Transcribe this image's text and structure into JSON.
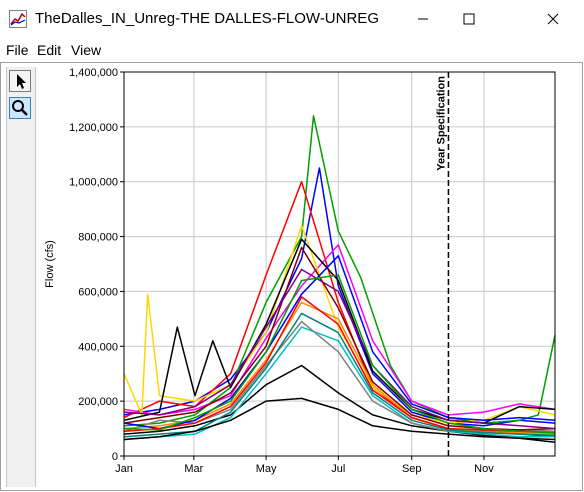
{
  "window": {
    "title": "TheDalles_IN_Unreg-THE DALLES-FLOW-UNREG",
    "icon": "chart-icon",
    "controls": [
      "minimize-icon",
      "maximize-icon",
      "close-icon"
    ]
  },
  "menu": [
    "File",
    "Edit",
    "View"
  ],
  "tools": [
    {
      "icon": "arrow-pointer-icon",
      "active": false
    },
    {
      "icon": "magnifier-icon",
      "active": true
    }
  ],
  "chart_data": {
    "type": "line",
    "title": "",
    "xlabel": "",
    "ylabel": "Flow (cfs)",
    "ylim": [
      0,
      1400000
    ],
    "x_domain_days": [
      0,
      364
    ],
    "x_ticks": [
      {
        "label": "Jan",
        "day": 0
      },
      {
        "label": "Mar",
        "day": 59
      },
      {
        "label": "May",
        "day": 120
      },
      {
        "label": "Jul",
        "day": 181
      },
      {
        "label": "Sep",
        "day": 243
      },
      {
        "label": "Nov",
        "day": 304
      }
    ],
    "y_ticks": [
      0,
      200000,
      400000,
      600000,
      800000,
      1000000,
      1200000,
      1400000
    ],
    "y_tick_labels": [
      "0",
      "200,000",
      "400,000",
      "600,000",
      "800,000",
      "1,000,000",
      "1,200,000",
      "1,400,000"
    ],
    "grid": true,
    "legend": "none",
    "marker": {
      "label": "Year Specification",
      "day": 274,
      "style": "dashed"
    },
    "series_colors": [
      "#000000",
      "#ff0000",
      "#0000ff",
      "#00a000",
      "#ff00ff",
      "#ffd700",
      "#00c0c0",
      "#ff8c00",
      "#808080",
      "#800000",
      "#008080",
      "#800080"
    ],
    "series": [
      {
        "color": "#000000",
        "values": [
          [
            0,
            80000
          ],
          [
            30,
            90000
          ],
          [
            60,
            110000
          ],
          [
            90,
            150000
          ],
          [
            120,
            260000
          ],
          [
            150,
            330000
          ],
          [
            181,
            230000
          ],
          [
            210,
            150000
          ],
          [
            243,
            110000
          ],
          [
            274,
            90000
          ],
          [
            304,
            75000
          ],
          [
            334,
            65000
          ],
          [
            364,
            60000
          ]
        ]
      },
      {
        "color": "#0000ff",
        "values": [
          [
            0,
            150000
          ],
          [
            30,
            170000
          ],
          [
            60,
            200000
          ],
          [
            90,
            280000
          ],
          [
            120,
            450000
          ],
          [
            150,
            720000
          ],
          [
            165,
            1050000
          ],
          [
            181,
            620000
          ],
          [
            210,
            300000
          ],
          [
            243,
            160000
          ],
          [
            274,
            120000
          ],
          [
            304,
            110000
          ],
          [
            334,
            130000
          ],
          [
            364,
            120000
          ]
        ]
      },
      {
        "color": "#00a000",
        "values": [
          [
            0,
            110000
          ],
          [
            30,
            120000
          ],
          [
            60,
            150000
          ],
          [
            90,
            250000
          ],
          [
            120,
            560000
          ],
          [
            150,
            800000
          ],
          [
            160,
            1240000
          ],
          [
            181,
            820000
          ],
          [
            200,
            650000
          ],
          [
            225,
            330000
          ],
          [
            243,
            200000
          ],
          [
            274,
            140000
          ],
          [
            304,
            120000
          ],
          [
            334,
            130000
          ],
          [
            350,
            150000
          ],
          [
            364,
            440000
          ]
        ]
      },
      {
        "color": "#ff0000",
        "values": [
          [
            0,
            140000
          ],
          [
            30,
            200000
          ],
          [
            60,
            180000
          ],
          [
            90,
            300000
          ],
          [
            120,
            660000
          ],
          [
            150,
            1000000
          ],
          [
            181,
            560000
          ],
          [
            210,
            250000
          ],
          [
            243,
            140000
          ],
          [
            274,
            100000
          ],
          [
            304,
            90000
          ],
          [
            334,
            80000
          ],
          [
            364,
            70000
          ]
        ]
      },
      {
        "color": "#ff00ff",
        "values": [
          [
            0,
            170000
          ],
          [
            30,
            150000
          ],
          [
            60,
            170000
          ],
          [
            90,
            220000
          ],
          [
            120,
            430000
          ],
          [
            150,
            620000
          ],
          [
            181,
            770000
          ],
          [
            210,
            420000
          ],
          [
            243,
            200000
          ],
          [
            274,
            150000
          ],
          [
            304,
            160000
          ],
          [
            334,
            190000
          ],
          [
            364,
            170000
          ]
        ]
      },
      {
        "color": "#ffd700",
        "values": [
          [
            0,
            300000
          ],
          [
            15,
            150000
          ],
          [
            20,
            590000
          ],
          [
            30,
            220000
          ],
          [
            60,
            200000
          ],
          [
            90,
            260000
          ],
          [
            120,
            450000
          ],
          [
            150,
            840000
          ],
          [
            181,
            470000
          ],
          [
            210,
            250000
          ],
          [
            243,
            150000
          ],
          [
            274,
            120000
          ],
          [
            304,
            130000
          ],
          [
            334,
            180000
          ],
          [
            364,
            150000
          ]
        ]
      },
      {
        "color": "#00c0c0",
        "values": [
          [
            0,
            60000
          ],
          [
            30,
            70000
          ],
          [
            60,
            80000
          ],
          [
            90,
            140000
          ],
          [
            120,
            300000
          ],
          [
            150,
            470000
          ],
          [
            181,
            420000
          ],
          [
            210,
            220000
          ],
          [
            243,
            120000
          ],
          [
            274,
            90000
          ],
          [
            304,
            80000
          ],
          [
            334,
            70000
          ],
          [
            364,
            70000
          ]
        ]
      },
      {
        "color": "#ff8c00",
        "values": [
          [
            0,
            100000
          ],
          [
            30,
            110000
          ],
          [
            60,
            130000
          ],
          [
            90,
            190000
          ],
          [
            120,
            350000
          ],
          [
            150,
            560000
          ],
          [
            181,
            500000
          ],
          [
            210,
            260000
          ],
          [
            243,
            140000
          ],
          [
            274,
            100000
          ],
          [
            304,
            90000
          ],
          [
            334,
            85000
          ],
          [
            364,
            80000
          ]
        ]
      },
      {
        "color": "#808080",
        "values": [
          [
            0,
            90000
          ],
          [
            30,
            130000
          ],
          [
            60,
            120000
          ],
          [
            90,
            170000
          ],
          [
            120,
            330000
          ],
          [
            150,
            490000
          ],
          [
            181,
            380000
          ],
          [
            210,
            200000
          ],
          [
            243,
            120000
          ],
          [
            274,
            90000
          ],
          [
            304,
            90000
          ],
          [
            334,
            95000
          ],
          [
            364,
            90000
          ]
        ]
      },
      {
        "color": "#800000",
        "values": [
          [
            0,
            120000
          ],
          [
            30,
            140000
          ],
          [
            60,
            160000
          ],
          [
            90,
            230000
          ],
          [
            120,
            400000
          ],
          [
            150,
            760000
          ],
          [
            181,
            540000
          ],
          [
            210,
            270000
          ],
          [
            243,
            150000
          ],
          [
            274,
            110000
          ],
          [
            304,
            100000
          ],
          [
            334,
            95000
          ],
          [
            364,
            100000
          ]
        ]
      },
      {
        "color": "#000000",
        "values": [
          [
            0,
            130000
          ],
          [
            30,
            160000
          ],
          [
            45,
            470000
          ],
          [
            60,
            220000
          ],
          [
            75,
            420000
          ],
          [
            90,
            250000
          ],
          [
            120,
            480000
          ],
          [
            150,
            790000
          ],
          [
            181,
            640000
          ],
          [
            210,
            310000
          ],
          [
            243,
            170000
          ],
          [
            274,
            130000
          ],
          [
            304,
            120000
          ],
          [
            334,
            180000
          ],
          [
            364,
            170000
          ]
        ]
      },
      {
        "color": "#008080",
        "values": [
          [
            0,
            70000
          ],
          [
            30,
            80000
          ],
          [
            60,
            90000
          ],
          [
            90,
            160000
          ],
          [
            120,
            320000
          ],
          [
            150,
            520000
          ],
          [
            181,
            450000
          ],
          [
            210,
            230000
          ],
          [
            243,
            130000
          ],
          [
            274,
            95000
          ],
          [
            304,
            85000
          ],
          [
            334,
            80000
          ],
          [
            364,
            75000
          ]
        ]
      },
      {
        "color": "#800080",
        "values": [
          [
            0,
            160000
          ],
          [
            30,
            150000
          ],
          [
            60,
            180000
          ],
          [
            90,
            260000
          ],
          [
            120,
            470000
          ],
          [
            150,
            680000
          ],
          [
            181,
            600000
          ],
          [
            210,
            330000
          ],
          [
            243,
            180000
          ],
          [
            274,
            130000
          ],
          [
            304,
            120000
          ],
          [
            334,
            110000
          ],
          [
            364,
            100000
          ]
        ]
      },
      {
        "color": "#0000ff",
        "values": [
          [
            0,
            120000
          ],
          [
            30,
            100000
          ],
          [
            60,
            130000
          ],
          [
            90,
            210000
          ],
          [
            120,
            380000
          ],
          [
            150,
            590000
          ],
          [
            181,
            730000
          ],
          [
            210,
            380000
          ],
          [
            243,
            190000
          ],
          [
            274,
            140000
          ],
          [
            304,
            130000
          ],
          [
            334,
            140000
          ],
          [
            364,
            130000
          ]
        ]
      },
      {
        "color": "#ff0000",
        "values": [
          [
            0,
            90000
          ],
          [
            30,
            100000
          ],
          [
            60,
            120000
          ],
          [
            90,
            180000
          ],
          [
            120,
            340000
          ],
          [
            150,
            580000
          ],
          [
            181,
            480000
          ],
          [
            210,
            240000
          ],
          [
            243,
            140000
          ],
          [
            274,
            100000
          ],
          [
            304,
            95000
          ],
          [
            334,
            90000
          ],
          [
            364,
            85000
          ]
        ]
      },
      {
        "color": "#00a000",
        "values": [
          [
            0,
            100000
          ],
          [
            30,
            95000
          ],
          [
            60,
            140000
          ],
          [
            90,
            200000
          ],
          [
            120,
            380000
          ],
          [
            150,
            640000
          ],
          [
            181,
            660000
          ],
          [
            210,
            330000
          ],
          [
            243,
            170000
          ],
          [
            274,
            120000
          ],
          [
            304,
            100000
          ],
          [
            334,
            90000
          ],
          [
            364,
            85000
          ]
        ]
      },
      {
        "color": "#000000",
        "values": [
          [
            0,
            60000
          ],
          [
            30,
            70000
          ],
          [
            60,
            90000
          ],
          [
            90,
            130000
          ],
          [
            120,
            200000
          ],
          [
            150,
            210000
          ],
          [
            181,
            170000
          ],
          [
            210,
            110000
          ],
          [
            243,
            90000
          ],
          [
            274,
            80000
          ],
          [
            304,
            70000
          ],
          [
            334,
            65000
          ],
          [
            364,
            50000
          ]
        ]
      }
    ]
  }
}
